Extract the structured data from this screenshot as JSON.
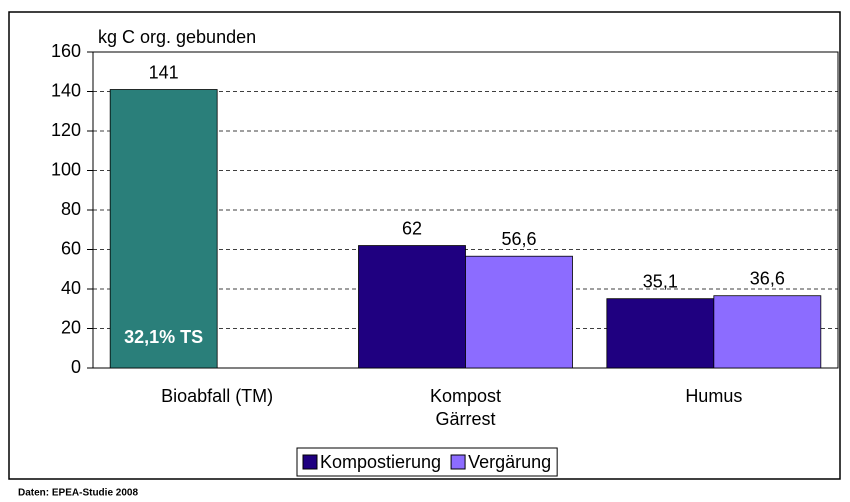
{
  "chart_data": {
    "type": "bar",
    "y_label": "kg C org. gebunden",
    "categories": [
      "Bioabfall (TM)",
      "Kompost\nGärrest",
      "Humus"
    ],
    "series": [
      {
        "name": "Kompostierung",
        "color": "#1f0080",
        "colors": [
          "#2a7f7a",
          "#1f0080",
          "#1f0080"
        ],
        "values": [
          141,
          62,
          35.1
        ],
        "value_labels": [
          "141",
          "62",
          "35,1"
        ]
      },
      {
        "name": "Vergärung",
        "color": "#8c6cff",
        "values": [
          null,
          56.6,
          36.6
        ],
        "value_labels": [
          null,
          "56,6",
          "36,6"
        ]
      }
    ],
    "annotation": "32,1% TS",
    "source": "Daten: EPEA-Studie 2008",
    "ylim": [
      0,
      160
    ],
    "yticks": [
      0,
      20,
      40,
      60,
      80,
      100,
      120,
      140,
      160
    ],
    "grid": true,
    "legend": "bottom"
  }
}
